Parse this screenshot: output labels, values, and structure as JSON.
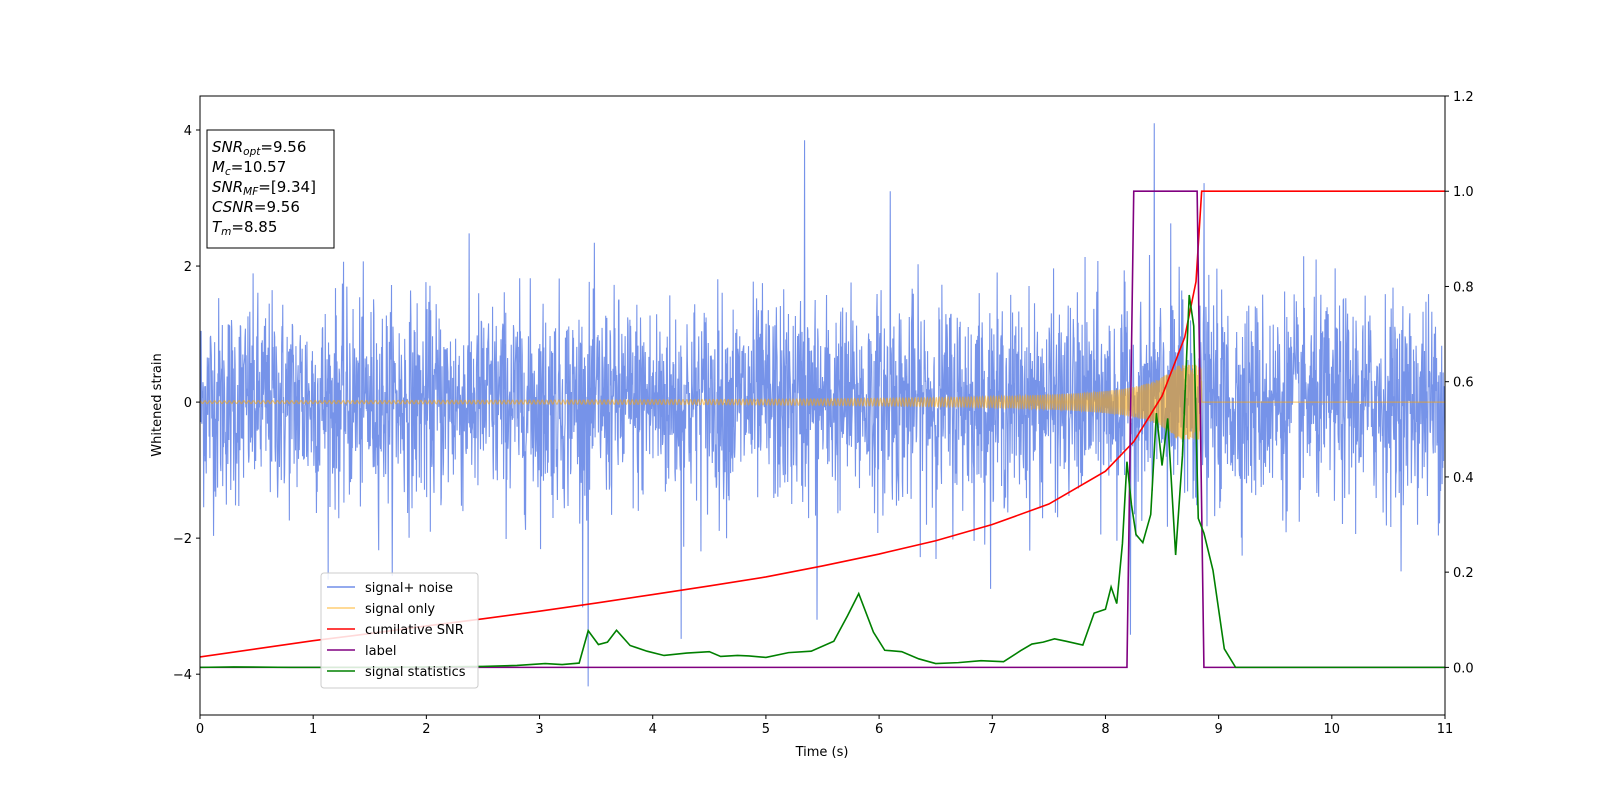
{
  "chart_data": {
    "type": "line",
    "title": "",
    "xlabel": "Time (s)",
    "ylabel": "Whitened strain",
    "y2label": "",
    "xlim": [
      0,
      11
    ],
    "ylim": [
      -4.6,
      4.5
    ],
    "y2lim": [
      -0.1,
      1.2
    ],
    "xticks": [
      0,
      1,
      2,
      3,
      4,
      5,
      6,
      7,
      8,
      9,
      10,
      11
    ],
    "yticks": [
      -4,
      -2,
      0,
      2,
      4
    ],
    "y2ticks": [
      0.0,
      0.2,
      0.4,
      0.6,
      0.8,
      1.0,
      1.2
    ],
    "grid": false,
    "legend_placement": "lower-left",
    "annotation_box": {
      "lines": [
        {
          "sym": "SNR",
          "sub": "opt",
          "value": "=9.56"
        },
        {
          "sym": "M",
          "sub": "c",
          "value": "=10.57"
        },
        {
          "sym": "SNR",
          "sub": "MF",
          "value": "=[9.34]"
        },
        {
          "sym": "CSNR",
          "sub": "",
          "value": "=9.56"
        },
        {
          "sym": "T",
          "sub": "m",
          "value": "=8.85"
        }
      ]
    },
    "series": [
      {
        "name": "signal+ noise",
        "axis": "left",
        "color": "#4169e1",
        "style": "noise",
        "noise_sigma": 0.75,
        "range": [
          -4.2,
          4.1
        ],
        "spikes": [
          {
            "x": 5.34,
            "y": 3.85
          },
          {
            "x": 8.43,
            "y": 4.1
          },
          {
            "x": 8.87,
            "y": 3.22
          },
          {
            "x": 3.43,
            "y": -4.18
          },
          {
            "x": 4.25,
            "y": -3.48
          },
          {
            "x": 8.22,
            "y": -3.42
          },
          {
            "x": 5.45,
            "y": -3.2
          },
          {
            "x": 6.1,
            "y": 3.1
          }
        ]
      },
      {
        "name": "signal only",
        "axis": "left",
        "color": "#ffa500",
        "style": "chirp",
        "t_merger": 8.85,
        "amplitude_start": 0.02,
        "amplitude_peak": 0.55
      },
      {
        "name": "cumilative SNR",
        "axis": "right",
        "color": "#ff0000",
        "x": [
          0,
          0.5,
          1,
          1.5,
          2,
          2.5,
          3,
          3.5,
          4,
          4.5,
          5,
          5.5,
          6,
          6.5,
          7,
          7.5,
          8,
          8.25,
          8.5,
          8.7,
          8.8,
          8.85,
          9,
          10,
          11
        ],
        "y": [
          0.022,
          0.039,
          0.056,
          0.071,
          0.087,
          0.102,
          0.118,
          0.135,
          0.153,
          0.171,
          0.19,
          0.213,
          0.238,
          0.266,
          0.3,
          0.343,
          0.412,
          0.474,
          0.57,
          0.693,
          0.81,
          1.0,
          1.0,
          1.0,
          1.0
        ]
      },
      {
        "name": "label",
        "axis": "right",
        "color": "#800080",
        "x": [
          0,
          8.19,
          8.25,
          8.81,
          8.87,
          11
        ],
        "y": [
          0,
          0,
          1,
          1,
          0,
          0
        ]
      },
      {
        "name": "signal statistics",
        "axis": "right",
        "color": "#008000",
        "x": [
          0,
          0.3,
          0.8,
          1.5,
          2.0,
          2.5,
          2.8,
          3.05,
          3.2,
          3.35,
          3.43,
          3.52,
          3.6,
          3.68,
          3.8,
          3.95,
          4.1,
          4.3,
          4.5,
          4.6,
          4.75,
          4.85,
          5.0,
          5.2,
          5.4,
          5.6,
          5.72,
          5.82,
          5.95,
          6.05,
          6.2,
          6.35,
          6.5,
          6.7,
          6.9,
          7.1,
          7.25,
          7.35,
          7.45,
          7.55,
          7.65,
          7.8,
          7.9,
          8.0,
          8.05,
          8.1,
          8.15,
          8.19,
          8.23,
          8.27,
          8.33,
          8.4,
          8.45,
          8.5,
          8.55,
          8.62,
          8.68,
          8.74,
          8.78,
          8.82,
          8.87,
          8.95,
          9.05,
          9.15,
          10,
          11
        ],
        "y": [
          0.0,
          0.001,
          0.0,
          0.0,
          0.001,
          0.002,
          0.004,
          0.008,
          0.006,
          0.009,
          0.077,
          0.048,
          0.053,
          0.078,
          0.046,
          0.034,
          0.025,
          0.03,
          0.033,
          0.023,
          0.025,
          0.024,
          0.021,
          0.031,
          0.034,
          0.055,
          0.108,
          0.155,
          0.074,
          0.036,
          0.033,
          0.018,
          0.008,
          0.01,
          0.014,
          0.012,
          0.035,
          0.049,
          0.053,
          0.06,
          0.055,
          0.047,
          0.114,
          0.122,
          0.169,
          0.134,
          0.26,
          0.432,
          0.341,
          0.279,
          0.262,
          0.321,
          0.534,
          0.424,
          0.523,
          0.236,
          0.444,
          0.782,
          0.717,
          0.313,
          0.282,
          0.204,
          0.039,
          0.0,
          0.0,
          0.0
        ]
      }
    ]
  }
}
